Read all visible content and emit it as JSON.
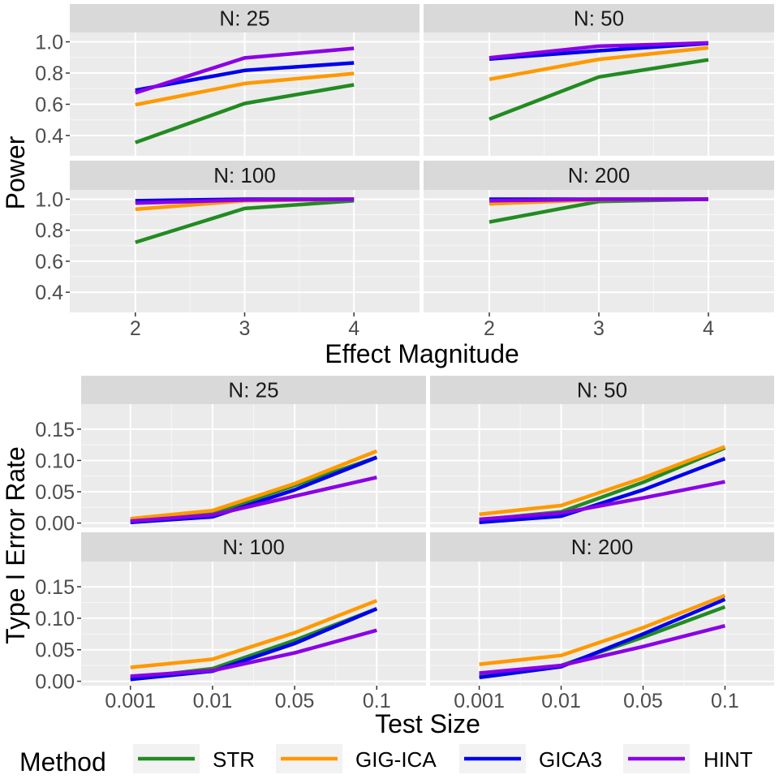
{
  "legend": {
    "title": "Method",
    "position": "bottom"
  },
  "chart_data": [
    {
      "type": "line",
      "facet_labels": [
        "N: 25",
        "N: 50",
        "N: 100",
        "N: 200"
      ],
      "xlabel": "Effect Magnitude",
      "ylabel": "Power",
      "x": [
        2,
        3,
        4
      ],
      "x_tick_labels": [
        "2",
        "3",
        "4"
      ],
      "xlim": [
        1.4,
        4.6
      ],
      "ylim": [
        0.27,
        1.06
      ],
      "y_ticks": [
        0.4,
        0.6,
        0.8,
        1.0
      ],
      "y_tick_labels": [
        "0.4",
        "0.6",
        "0.8",
        "1.0"
      ],
      "grid": true,
      "series": [
        {
          "name": "STR",
          "color": "#228B22",
          "values": [
            [
              0.355,
              0.605,
              0.725
            ],
            [
              0.505,
              0.775,
              0.885
            ],
            [
              0.722,
              0.94,
              0.99
            ],
            [
              0.853,
              0.985,
              1.0
            ]
          ]
        },
        {
          "name": "GIG-ICA",
          "color": "#FF9900",
          "values": [
            [
              0.597,
              0.733,
              0.797
            ],
            [
              0.76,
              0.888,
              0.962
            ],
            [
              0.935,
              0.99,
              1.0
            ],
            [
              0.97,
              0.997,
              1.0
            ]
          ]
        },
        {
          "name": "GICA3",
          "color": "#0000EE",
          "values": [
            [
              0.69,
              0.817,
              0.865
            ],
            [
              0.89,
              0.943,
              0.99
            ],
            [
              0.99,
              1.0,
              1.0
            ],
            [
              1.0,
              1.0,
              1.0
            ]
          ]
        },
        {
          "name": "HINT",
          "color": "#8B00E6",
          "values": [
            [
              0.673,
              0.897,
              0.958
            ],
            [
              0.898,
              0.972,
              0.993
            ],
            [
              0.975,
              0.995,
              1.0
            ],
            [
              0.99,
              1.0,
              1.0
            ]
          ]
        }
      ]
    },
    {
      "type": "line",
      "facet_labels": [
        "N: 25",
        "N: 50",
        "N: 100",
        "N: 200"
      ],
      "xlabel": "Test Size",
      "ylabel": "Type I Error Rate",
      "x": [
        "0.001",
        "0.01",
        "0.05",
        "0.1"
      ],
      "x_tick_labels": [
        "0.001",
        "0.01",
        "0.05",
        "0.1"
      ],
      "xlim": [
        0.4,
        4.6
      ],
      "ylim": [
        -0.007,
        0.19
      ],
      "y_ticks": [
        0.0,
        0.05,
        0.1,
        0.15
      ],
      "y_tick_labels": [
        "0.00",
        "0.05",
        "0.10",
        "0.15"
      ],
      "grid": true,
      "series": [
        {
          "name": "STR",
          "color": "#228B22",
          "values": [
            [
              0.003,
              0.015,
              0.06,
              0.105
            ],
            [
              0.005,
              0.018,
              0.065,
              0.12
            ],
            [
              0.005,
              0.02,
              0.065,
              0.115
            ],
            [
              0.01,
              0.025,
              0.07,
              0.118
            ]
          ]
        },
        {
          "name": "GIG-ICA",
          "color": "#FF9900",
          "values": [
            [
              0.007,
              0.02,
              0.063,
              0.115
            ],
            [
              0.014,
              0.028,
              0.072,
              0.122
            ],
            [
              0.022,
              0.035,
              0.077,
              0.128
            ],
            [
              0.027,
              0.041,
              0.085,
              0.136
            ]
          ]
        },
        {
          "name": "GICA3",
          "color": "#0000EE",
          "values": [
            [
              0.001,
              0.01,
              0.053,
              0.105
            ],
            [
              0.001,
              0.011,
              0.053,
              0.103
            ],
            [
              0.003,
              0.016,
              0.06,
              0.115
            ],
            [
              0.006,
              0.023,
              0.075,
              0.13
            ]
          ]
        },
        {
          "name": "HINT",
          "color": "#8B00E6",
          "values": [
            [
              0.003,
              0.013,
              0.043,
              0.073
            ],
            [
              0.006,
              0.016,
              0.04,
              0.066
            ],
            [
              0.008,
              0.017,
              0.045,
              0.081
            ],
            [
              0.013,
              0.025,
              0.055,
              0.088
            ]
          ]
        }
      ]
    }
  ]
}
